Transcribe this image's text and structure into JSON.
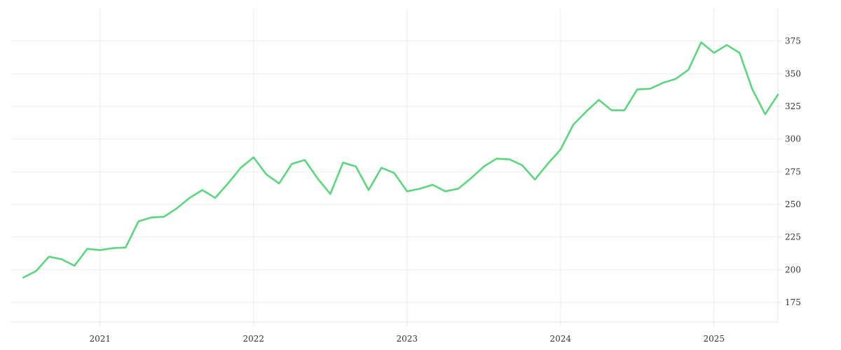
{
  "chart_data": {
    "type": "line",
    "title": "",
    "xlabel": "",
    "ylabel": "",
    "x_ticks": [
      "2021",
      "2022",
      "2023",
      "2024",
      "2025"
    ],
    "y_ticks": [
      175,
      200,
      225,
      250,
      275,
      300,
      325,
      350,
      375
    ],
    "xlim": [
      "2020-06",
      "2025-06"
    ],
    "ylim": [
      160,
      400
    ],
    "grid": true,
    "legend": "none",
    "series": [
      {
        "color": "#5dd57f",
        "x": [
          "2020-07",
          "2020-08",
          "2020-09",
          "2020-10",
          "2020-11",
          "2020-12",
          "2021-01",
          "2021-02",
          "2021-03",
          "2021-04",
          "2021-05",
          "2021-06",
          "2021-07",
          "2021-08",
          "2021-09",
          "2021-10",
          "2021-11",
          "2021-12",
          "2022-01",
          "2022-02",
          "2022-03",
          "2022-04",
          "2022-05",
          "2022-06",
          "2022-07",
          "2022-08",
          "2022-09",
          "2022-10",
          "2022-11",
          "2022-12",
          "2023-01",
          "2023-02",
          "2023-03",
          "2023-04",
          "2023-05",
          "2023-06",
          "2023-07",
          "2023-08",
          "2023-09",
          "2023-10",
          "2023-11",
          "2023-12",
          "2024-01",
          "2024-02",
          "2024-03",
          "2024-04",
          "2024-05",
          "2024-06",
          "2024-07",
          "2024-08",
          "2024-09",
          "2024-10",
          "2024-11",
          "2024-12",
          "2025-01",
          "2025-02",
          "2025-03",
          "2025-04",
          "2025-05",
          "2025-06"
        ],
        "values": [
          194,
          199,
          210,
          208,
          203,
          216,
          215,
          216.5,
          217,
          237,
          240,
          240.5,
          247,
          255,
          261,
          255,
          266,
          278,
          286,
          273,
          266,
          281,
          284,
          270,
          258,
          282,
          279,
          261,
          278,
          274,
          260,
          262,
          265,
          260,
          262,
          270,
          279,
          285,
          284.5,
          280,
          269,
          281,
          292,
          311,
          321,
          330,
          322,
          322,
          338,
          338.5,
          343,
          346,
          353,
          374,
          366,
          372,
          366,
          338,
          319,
          334
        ]
      }
    ]
  }
}
